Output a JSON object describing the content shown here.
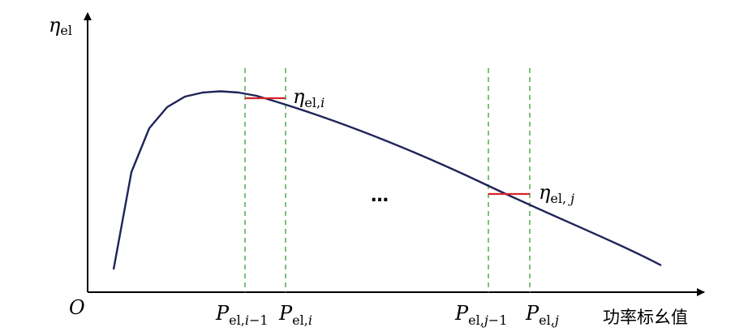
{
  "axes": {
    "y_label": {
      "main": "η",
      "sub": "el"
    },
    "x_label": "功率标幺值",
    "origin": "O"
  },
  "ticks": [
    {
      "id": "p-i-minus-1",
      "main": "P",
      "sub": "el,",
      "sub_italic": "i",
      "sub_tail": "−1"
    },
    {
      "id": "p-i",
      "main": "P",
      "sub": "el,",
      "sub_italic": "i",
      "sub_tail": ""
    },
    {
      "id": "p-j-minus-1",
      "main": "P",
      "sub": "el,",
      "sub_italic": "j",
      "sub_tail": "−1"
    },
    {
      "id": "p-j",
      "main": "P",
      "sub": "el,",
      "sub_italic": "j",
      "sub_tail": ""
    }
  ],
  "efficiency_labels": [
    {
      "id": "eta-i",
      "main": "η",
      "sub": "el,",
      "sub_italic": "i"
    },
    {
      "id": "eta-j",
      "main": "η",
      "sub": "el, ",
      "sub_italic": "j"
    }
  ],
  "ellipsis": "…",
  "colors": {
    "curve": "#1f2458",
    "axis": "#000000",
    "interval_line": "#3a9a3a",
    "efficiency_mark": "#d9242b"
  }
}
